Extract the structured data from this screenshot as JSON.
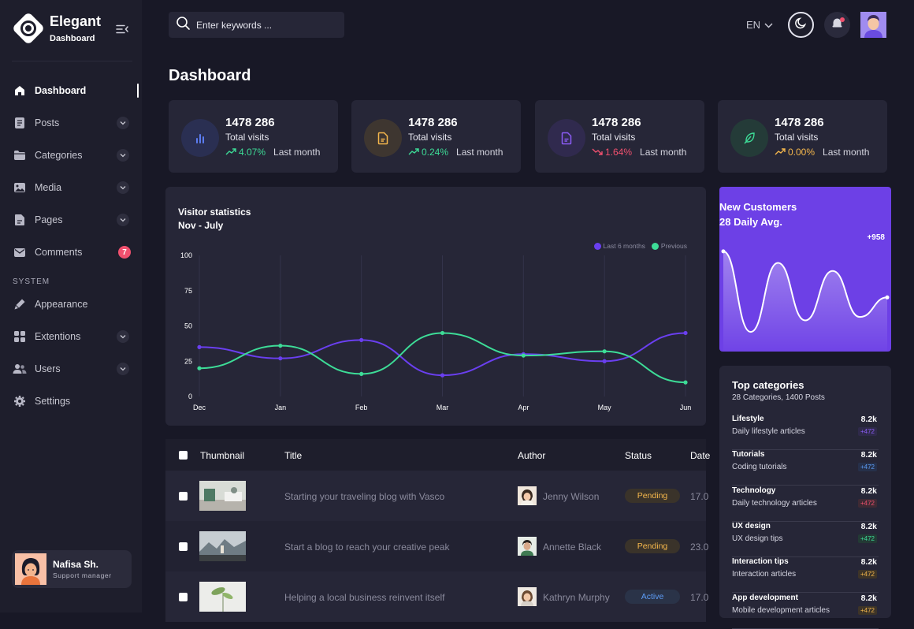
{
  "brand": {
    "title": "Elegant",
    "subtitle": "Dashboard"
  },
  "sidebar": {
    "items": [
      {
        "label": "Dashboard",
        "icon": "home-icon",
        "active": true
      },
      {
        "label": "Posts",
        "icon": "document-icon",
        "chevron": true
      },
      {
        "label": "Categories",
        "icon": "folder-icon",
        "chevron": true
      },
      {
        "label": "Media",
        "icon": "image-icon",
        "chevron": true
      },
      {
        "label": "Pages",
        "icon": "page-icon",
        "chevron": true
      },
      {
        "label": "Comments",
        "icon": "mail-icon",
        "badge": "7"
      }
    ],
    "section_label": "SYSTEM",
    "system_items": [
      {
        "label": "Appearance",
        "icon": "brush-icon"
      },
      {
        "label": "Extentions",
        "icon": "grid-icon",
        "chevron": true
      },
      {
        "label": "Users",
        "icon": "users-icon",
        "chevron": true
      },
      {
        "label": "Settings",
        "icon": "gear-icon"
      }
    ],
    "user": {
      "name": "Nafisa Sh.",
      "role": "Support manager"
    }
  },
  "header": {
    "search_placeholder": "Enter keywords ...",
    "language": "EN"
  },
  "page_title": "Dashboard",
  "stats": [
    {
      "value": "1478 286",
      "label": "Total visits",
      "pct": "4.07%",
      "trend": "up",
      "period": "Last month",
      "icon": "bar-chart-icon",
      "icon_color": "#5b7cf0",
      "icon_bg": "#2a2f52",
      "trend_color": "#3ddc97"
    },
    {
      "value": "1478 286",
      "label": "Total visits",
      "pct": "0.24%",
      "trend": "up",
      "period": "Last month",
      "icon": "file-icon",
      "icon_color": "#f5b74c",
      "icon_bg": "#3e3630",
      "trend_color": "#3ddc97"
    },
    {
      "value": "1478 286",
      "label": "Total visits",
      "pct": "1.64%",
      "trend": "down",
      "period": "Last month",
      "icon": "file-icon",
      "icon_color": "#8b5cf6",
      "icon_bg": "#302a4e",
      "trend_color": "#f0506e"
    },
    {
      "value": "1478 286",
      "label": "Total visits",
      "pct": "0.00%",
      "trend": "up",
      "period": "Last month",
      "icon": "feather-icon",
      "icon_color": "#3ddc97",
      "icon_bg": "#243b38",
      "trend_color": "#f5b74c"
    }
  ],
  "visitor_chart": {
    "title": "Visitor statistics",
    "subtitle": "Nov - July",
    "chart_data": {
      "type": "line",
      "x": [
        "Dec",
        "Jan",
        "Feb",
        "Mar",
        "Apr",
        "May",
        "Jun"
      ],
      "ylim": [
        0,
        100
      ],
      "yticks": [
        "100",
        "75",
        "50",
        "25",
        "0"
      ],
      "series": [
        {
          "name": "Last 6 months",
          "color": "#6a3ff0",
          "values": [
            35,
            27,
            40,
            15,
            30,
            25,
            45
          ]
        },
        {
          "name": "Previous",
          "color": "#3ddc97",
          "values": [
            20,
            36,
            16,
            45,
            29,
            32,
            10
          ]
        }
      ],
      "legend": "top-right",
      "grid": "vertical"
    }
  },
  "new_customers": {
    "title": "New Customers",
    "subtitle": "28 Daily Avg.",
    "value": "+958",
    "chart_data": {
      "type": "area",
      "values": [
        0.85,
        0.15,
        0.75,
        0.25,
        0.68,
        0.28,
        0.45
      ],
      "color": "#ffffff"
    }
  },
  "top_categories": {
    "title": "Top categories",
    "subtitle": "28 Categories, 1400 Posts",
    "items": [
      {
        "name": "Lifestyle",
        "desc": "Daily lifestyle articles",
        "count": "8.2k",
        "badge": "+472",
        "badge_color": "#8b5cf6",
        "badge_bg": "#2f2a4a"
      },
      {
        "name": "Tutorials",
        "desc": "Coding tutorials",
        "count": "8.2k",
        "badge": "+472",
        "badge_color": "#5d9cf5",
        "badge_bg": "#26304a"
      },
      {
        "name": "Technology",
        "desc": "Daily technology articles",
        "count": "8.2k",
        "badge": "+472",
        "badge_color": "#f0506e",
        "badge_bg": "#3e2a34"
      },
      {
        "name": "UX design",
        "desc": "UX design tips",
        "count": "8.2k",
        "badge": "+472",
        "badge_color": "#3ddc97",
        "badge_bg": "#233a35"
      },
      {
        "name": "Interaction tips",
        "desc": "Interaction articles",
        "count": "8.2k",
        "badge": "+472",
        "badge_color": "#f5b74c",
        "badge_bg": "#3d3428"
      },
      {
        "name": "App development",
        "desc": "Mobile development articles",
        "count": "8.2k",
        "badge": "+472",
        "badge_color": "#f5b74c",
        "badge_bg": "#3d3428"
      }
    ]
  },
  "table": {
    "columns": [
      "Thumbnail",
      "Title",
      "Author",
      "Status",
      "Date"
    ],
    "rows": [
      {
        "title": "Starting your traveling blog with Vasco",
        "author": "Jenny Wilson",
        "status": "Pending",
        "date": "17.0"
      },
      {
        "title": "Start a blog to reach your creative peak",
        "author": "Annette Black",
        "status": "Pending",
        "date": "23.0"
      },
      {
        "title": "Helping a local business reinvent itself",
        "author": "Kathryn Murphy",
        "status": "Active",
        "date": "17.0"
      }
    ]
  }
}
